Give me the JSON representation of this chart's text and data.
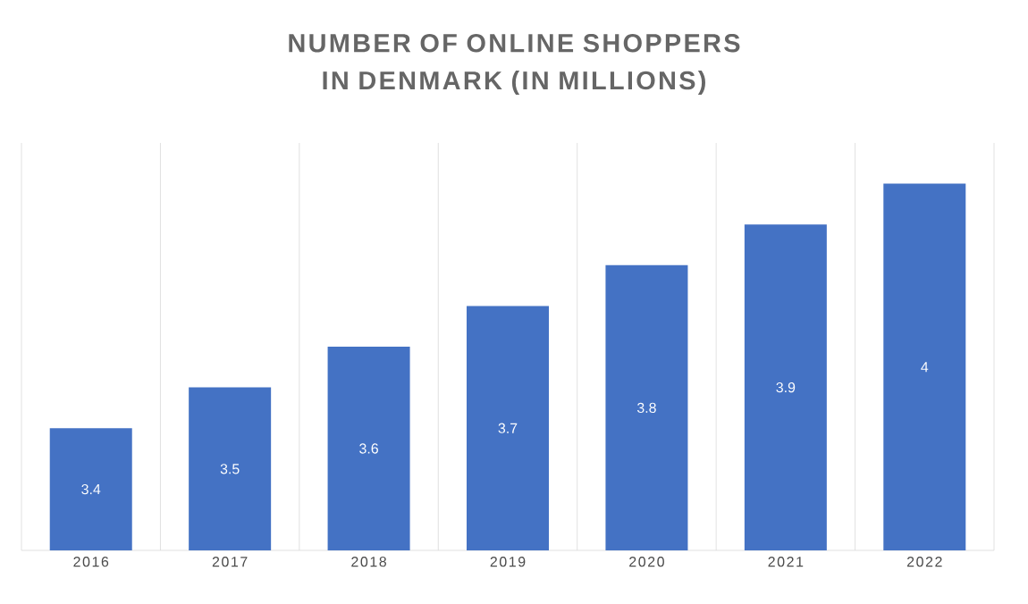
{
  "chart_data": {
    "type": "bar",
    "title": "NUMBER OF ONLINE SHOPPERS IN DENMARK (IN MILLIONS)",
    "categories": [
      "2016",
      "2017",
      "2018",
      "2019",
      "2020",
      "2021",
      "2022"
    ],
    "values": [
      3.4,
      3.5,
      3.6,
      3.7,
      3.8,
      3.9,
      4
    ],
    "color": "#4472c4",
    "ylim": [
      3.1,
      4.1
    ],
    "data_labels": true,
    "grid": "x"
  }
}
